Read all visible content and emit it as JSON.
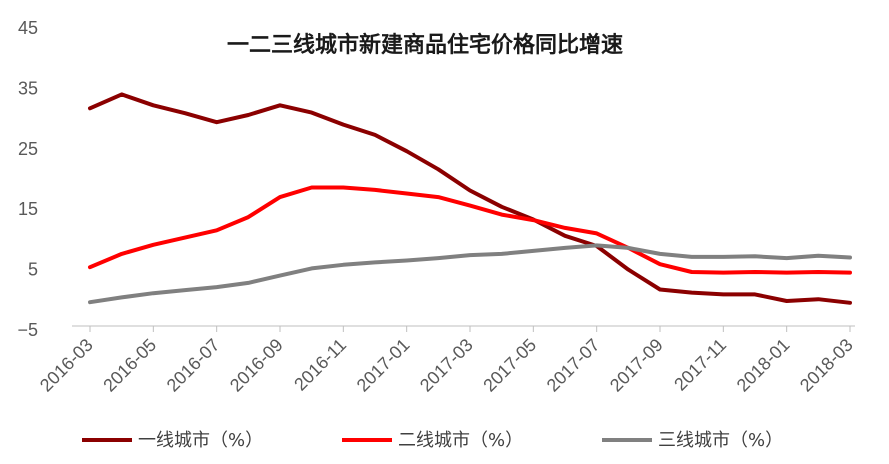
{
  "chart_data": {
    "type": "line",
    "title": "一二三线城市新建商品住宅价格同比增速",
    "xlabel": "",
    "ylabel": "",
    "ylim": [
      -5,
      45
    ],
    "yticks": [
      "45",
      "35",
      "25",
      "15",
      "5",
      "−5"
    ],
    "ytick_values": [
      45,
      35,
      25,
      15,
      5,
      -5
    ],
    "x": [
      "2016-03",
      "2016-04",
      "2016-05",
      "2016-06",
      "2016-07",
      "2016-08",
      "2016-09",
      "2016-10",
      "2016-11",
      "2016-12",
      "2017-01",
      "2017-02",
      "2017-03",
      "2017-04",
      "2017-05",
      "2017-06",
      "2017-07",
      "2017-08",
      "2017-09",
      "2017-10",
      "2017-11",
      "2017-12",
      "2018-01",
      "2018-02",
      "2018-03"
    ],
    "xtick_labels": [
      "2016-03",
      "2016-05",
      "2016-07",
      "2016-09",
      "2016-11",
      "2017-01",
      "2017-03",
      "2017-05",
      "2017-07",
      "2017-09",
      "2017-11",
      "2018-01",
      "2018-03"
    ],
    "series": [
      {
        "name": "一线城市（%）",
        "color": "#8b0000",
        "values": [
          31.7,
          34.0,
          32.2,
          30.9,
          29.4,
          30.6,
          32.2,
          31.0,
          29.0,
          27.3,
          24.6,
          21.6,
          18.1,
          15.4,
          13.3,
          10.6,
          8.9,
          5.0,
          1.7,
          1.2,
          0.9,
          0.9,
          -0.2,
          0.1,
          -0.5
        ]
      },
      {
        "name": "二线城市（%）",
        "color": "#ff0000",
        "values": [
          5.4,
          7.6,
          9.1,
          10.3,
          11.5,
          13.7,
          17.0,
          18.6,
          18.6,
          18.2,
          17.6,
          17.0,
          15.6,
          14.1,
          13.2,
          11.9,
          11.0,
          8.6,
          5.9,
          4.6,
          4.5,
          4.6,
          4.5,
          4.6,
          4.5
        ]
      },
      {
        "name": "三线城市（%）",
        "color": "#808080",
        "values": [
          -0.4,
          0.4,
          1.1,
          1.6,
          2.1,
          2.8,
          4.0,
          5.2,
          5.8,
          6.2,
          6.5,
          6.9,
          7.4,
          7.6,
          8.1,
          8.6,
          9.0,
          8.6,
          7.6,
          7.1,
          7.1,
          7.2,
          6.9,
          7.3,
          7.0
        ]
      }
    ],
    "grid": false,
    "legend_position": "bottom"
  }
}
